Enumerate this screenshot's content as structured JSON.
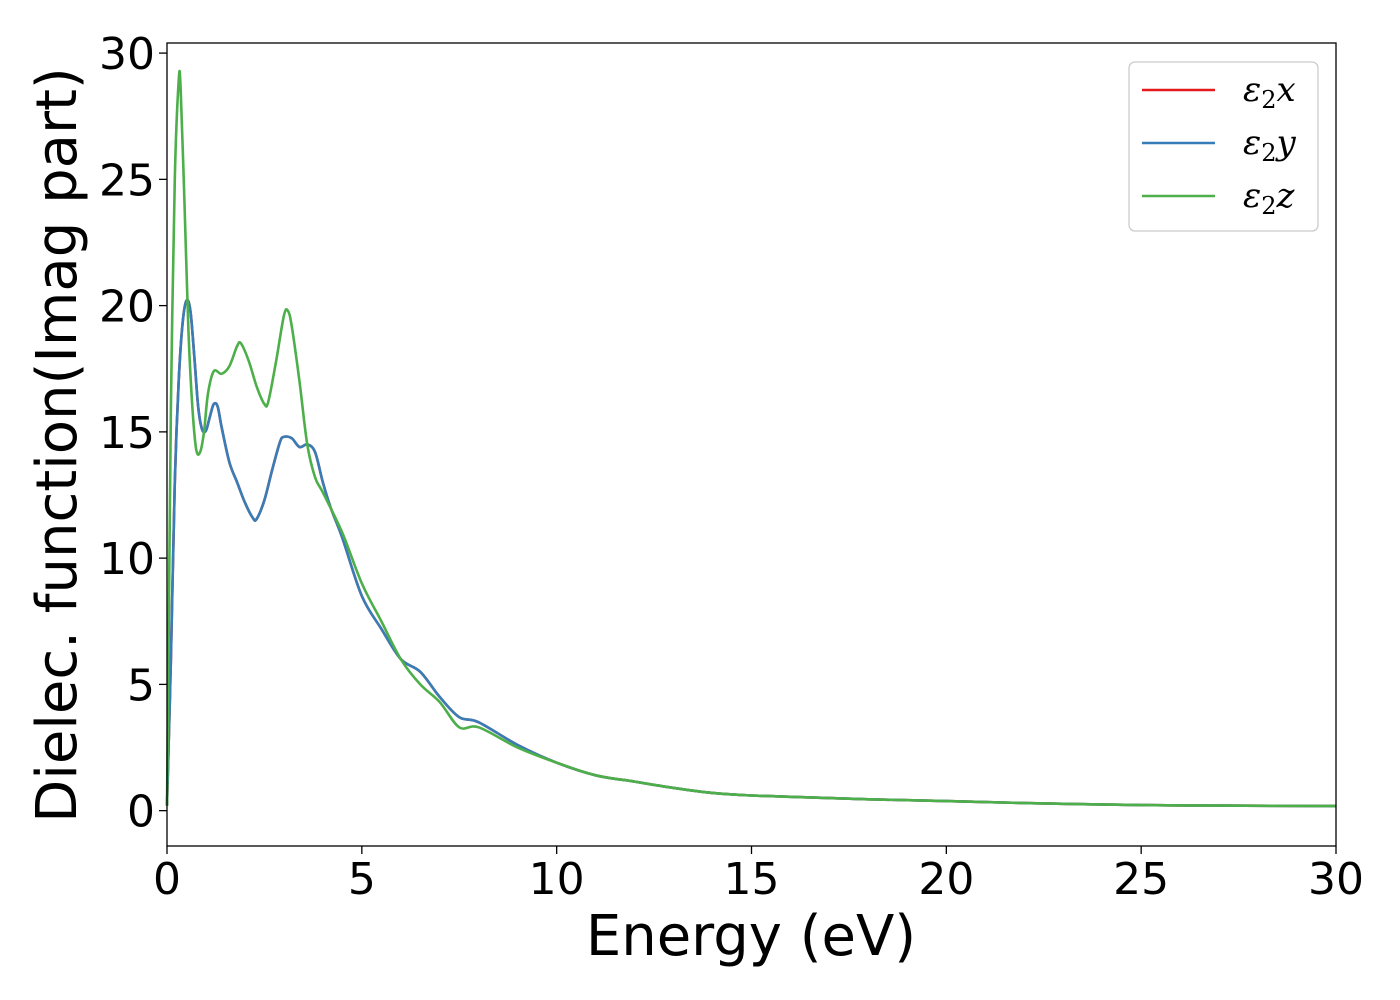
{
  "chart_data": {
    "type": "line",
    "title": "",
    "xlabel": "Energy (eV)",
    "ylabel": "Dielec. function(Imag part)",
    "xlim": [
      0,
      30
    ],
    "ylim": [
      -1.4,
      30.4
    ],
    "xticks": [
      0,
      5,
      10,
      15,
      20,
      25,
      30
    ],
    "yticks": [
      0,
      5,
      10,
      15,
      20,
      25,
      30
    ],
    "grid": false,
    "legend_position": "top-right",
    "series": [
      {
        "name": "ε2x",
        "legend_base": "ε",
        "legend_sub": "2",
        "legend_suffix": "x",
        "color": "#e41a1c",
        "points": [
          [
            0,
            0.2
          ],
          [
            0.1,
            6
          ],
          [
            0.2,
            13
          ],
          [
            0.3,
            17
          ],
          [
            0.4,
            19.3
          ],
          [
            0.5,
            20.2
          ],
          [
            0.6,
            19.8
          ],
          [
            0.7,
            18
          ],
          [
            0.8,
            16
          ],
          [
            0.9,
            15.1
          ],
          [
            1.0,
            15.05
          ],
          [
            1.1,
            15.6
          ],
          [
            1.2,
            16.1
          ],
          [
            1.3,
            16
          ],
          [
            1.4,
            15.2
          ],
          [
            1.6,
            13.8
          ],
          [
            1.8,
            13
          ],
          [
            2.0,
            12.2
          ],
          [
            2.2,
            11.6
          ],
          [
            2.3,
            11.55
          ],
          [
            2.5,
            12.3
          ],
          [
            2.7,
            13.5
          ],
          [
            2.9,
            14.6
          ],
          [
            3.0,
            14.8
          ],
          [
            3.2,
            14.75
          ],
          [
            3.4,
            14.4
          ],
          [
            3.6,
            14.5
          ],
          [
            3.8,
            14.2
          ],
          [
            4.0,
            13
          ],
          [
            4.2,
            12
          ],
          [
            4.5,
            10.8
          ],
          [
            5.0,
            8.5
          ],
          [
            5.5,
            7.2
          ],
          [
            6.0,
            6
          ],
          [
            6.5,
            5.5
          ],
          [
            7.0,
            4.5
          ],
          [
            7.5,
            3.7
          ],
          [
            8.0,
            3.5
          ],
          [
            9.0,
            2.6
          ],
          [
            10.0,
            1.9
          ],
          [
            11.0,
            1.4
          ],
          [
            12.0,
            1.15
          ],
          [
            13.0,
            0.9
          ],
          [
            14.0,
            0.7
          ],
          [
            15.0,
            0.6
          ],
          [
            17.0,
            0.5
          ],
          [
            18.0,
            0.45
          ],
          [
            20.0,
            0.38
          ],
          [
            22.0,
            0.3
          ],
          [
            25.0,
            0.22
          ],
          [
            27.0,
            0.2
          ],
          [
            30.0,
            0.18
          ]
        ]
      },
      {
        "name": "ε2y",
        "legend_base": "ε",
        "legend_sub": "2",
        "legend_suffix": "y",
        "color": "#377eb8",
        "points": [
          [
            0,
            0.2
          ],
          [
            0.1,
            6
          ],
          [
            0.2,
            13
          ],
          [
            0.3,
            17
          ],
          [
            0.4,
            19.3
          ],
          [
            0.5,
            20.2
          ],
          [
            0.6,
            19.8
          ],
          [
            0.7,
            18
          ],
          [
            0.8,
            16
          ],
          [
            0.9,
            15.1
          ],
          [
            1.0,
            15.05
          ],
          [
            1.1,
            15.6
          ],
          [
            1.2,
            16.1
          ],
          [
            1.3,
            16
          ],
          [
            1.4,
            15.2
          ],
          [
            1.6,
            13.8
          ],
          [
            1.8,
            13
          ],
          [
            2.0,
            12.2
          ],
          [
            2.2,
            11.6
          ],
          [
            2.3,
            11.55
          ],
          [
            2.5,
            12.3
          ],
          [
            2.7,
            13.5
          ],
          [
            2.9,
            14.6
          ],
          [
            3.0,
            14.8
          ],
          [
            3.2,
            14.75
          ],
          [
            3.4,
            14.4
          ],
          [
            3.6,
            14.5
          ],
          [
            3.8,
            14.2
          ],
          [
            4.0,
            13
          ],
          [
            4.2,
            12
          ],
          [
            4.5,
            10.8
          ],
          [
            5.0,
            8.5
          ],
          [
            5.5,
            7.2
          ],
          [
            6.0,
            6
          ],
          [
            6.5,
            5.5
          ],
          [
            7.0,
            4.5
          ],
          [
            7.5,
            3.7
          ],
          [
            8.0,
            3.5
          ],
          [
            9.0,
            2.6
          ],
          [
            10.0,
            1.9
          ],
          [
            11.0,
            1.4
          ],
          [
            12.0,
            1.15
          ],
          [
            13.0,
            0.9
          ],
          [
            14.0,
            0.7
          ],
          [
            15.0,
            0.6
          ],
          [
            17.0,
            0.5
          ],
          [
            18.0,
            0.45
          ],
          [
            20.0,
            0.38
          ],
          [
            22.0,
            0.3
          ],
          [
            25.0,
            0.22
          ],
          [
            27.0,
            0.2
          ],
          [
            30.0,
            0.18
          ]
        ]
      },
      {
        "name": "ε2z",
        "legend_base": "ε",
        "legend_sub": "2",
        "legend_suffix": "z",
        "color": "#4daf4a",
        "points": [
          [
            0,
            0.2
          ],
          [
            0.05,
            8
          ],
          [
            0.1,
            16
          ],
          [
            0.2,
            25
          ],
          [
            0.3,
            28.9
          ],
          [
            0.35,
            28.6
          ],
          [
            0.45,
            24
          ],
          [
            0.55,
            19
          ],
          [
            0.65,
            16
          ],
          [
            0.75,
            14.3
          ],
          [
            0.85,
            14.2
          ],
          [
            0.95,
            15
          ],
          [
            1.05,
            16.5
          ],
          [
            1.2,
            17.4
          ],
          [
            1.4,
            17.3
          ],
          [
            1.6,
            17.6
          ],
          [
            1.8,
            18.4
          ],
          [
            1.9,
            18.5
          ],
          [
            2.1,
            17.8
          ],
          [
            2.3,
            16.8
          ],
          [
            2.5,
            16.1
          ],
          [
            2.6,
            16.2
          ],
          [
            2.8,
            17.8
          ],
          [
            3.0,
            19.6
          ],
          [
            3.1,
            19.8
          ],
          [
            3.2,
            19.2
          ],
          [
            3.4,
            17
          ],
          [
            3.6,
            14.5
          ],
          [
            3.8,
            13.2
          ],
          [
            4.0,
            12.6
          ],
          [
            4.5,
            11
          ],
          [
            5.0,
            9
          ],
          [
            5.5,
            7.5
          ],
          [
            6.0,
            6
          ],
          [
            6.5,
            5
          ],
          [
            7.0,
            4.3
          ],
          [
            7.5,
            3.3
          ],
          [
            8.0,
            3.3
          ],
          [
            9.0,
            2.5
          ],
          [
            10.0,
            1.9
          ],
          [
            11.0,
            1.4
          ],
          [
            12.0,
            1.15
          ],
          [
            13.0,
            0.9
          ],
          [
            14.0,
            0.7
          ],
          [
            15.0,
            0.6
          ],
          [
            17.0,
            0.5
          ],
          [
            18.0,
            0.45
          ],
          [
            20.0,
            0.38
          ],
          [
            22.0,
            0.3
          ],
          [
            25.0,
            0.22
          ],
          [
            27.0,
            0.2
          ],
          [
            30.0,
            0.18
          ]
        ]
      }
    ]
  }
}
